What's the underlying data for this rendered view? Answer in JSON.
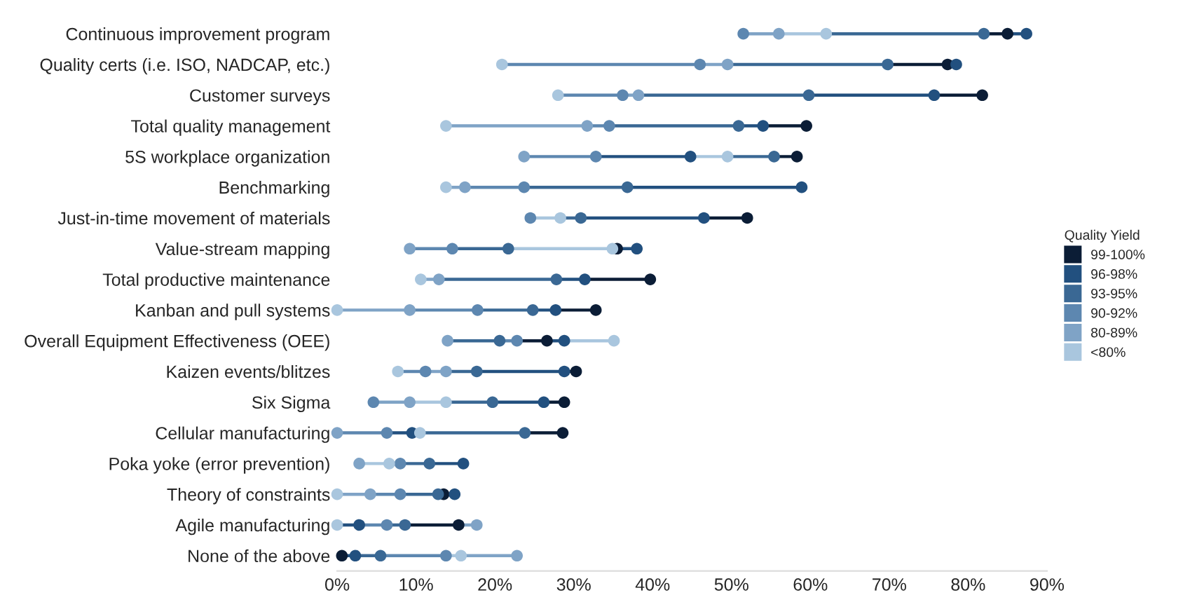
{
  "chart_data": {
    "type": "scatter",
    "orientation": "horizontal",
    "marker": "circle",
    "grid": false,
    "legend": "right",
    "legend_title": "Quality Yield",
    "categories": [
      "Continuous improvement program",
      "Quality certs (i.e. ISO, NADCAP, etc.)",
      "Customer surveys",
      "Total quality management",
      "5S workplace organization",
      "Benchmarking",
      "Just-in-time movement of materials",
      "Value-stream mapping",
      "Total productive maintenance",
      "Kanban and pull systems",
      "Overall Equipment Effectiveness (OEE)",
      "Kaizen events/blitzes",
      "Six Sigma",
      "Cellular manufacturing",
      "Poka yoke (error prevention)",
      "Theory of constraints",
      "Agile manufacturing",
      "None of the above"
    ],
    "xlim": [
      0,
      90
    ],
    "xticks": [
      {
        "value": 0,
        "label": "0%"
      },
      {
        "value": 10,
        "label": "10%"
      },
      {
        "value": 20,
        "label": "20%"
      },
      {
        "value": 30,
        "label": "30%"
      },
      {
        "value": 40,
        "label": "40%"
      },
      {
        "value": 50,
        "label": "50%"
      },
      {
        "value": 60,
        "label": "60%"
      },
      {
        "value": 70,
        "label": "70%"
      },
      {
        "value": 80,
        "label": "80%"
      },
      {
        "value": 90,
        "label": "90%"
      }
    ],
    "series": [
      {
        "name": "99-100%",
        "color": "#0b1d36",
        "values": [
          85,
          77.4,
          81.8,
          59.5,
          58.3,
          null,
          52,
          35.5,
          39.7,
          32.8,
          26.6,
          30.3,
          28.8,
          28.6,
          null,
          13.5,
          15.4,
          0.6
        ]
      },
      {
        "name": "96-98%",
        "color": "#22507f",
        "values": [
          87.4,
          78.5,
          75.7,
          54,
          44.8,
          58.9,
          46.5,
          38,
          31.4,
          27.7,
          28.8,
          28.8,
          26.2,
          9.5,
          16,
          14.9,
          2.8,
          2.3
        ]
      },
      {
        "name": "93-95%",
        "color": "#3a6894",
        "values": [
          82,
          69.8,
          59.8,
          50.9,
          55.4,
          36.8,
          30.9,
          21.7,
          27.8,
          24.8,
          20.6,
          17.7,
          19.7,
          23.8,
          11.7,
          12.8,
          8.6,
          5.5
        ]
      },
      {
        "name": "90-92%",
        "color": "#5d87b0",
        "values": [
          51.5,
          46,
          36.2,
          34.5,
          32.8,
          23.7,
          24.5,
          14.6,
          null,
          17.8,
          22.8,
          11.2,
          4.6,
          6.3,
          8,
          8,
          6.3,
          13.8
        ]
      },
      {
        "name": "80-89%",
        "color": "#7fa3c6",
        "values": [
          56,
          49.5,
          38.2,
          31.7,
          23.7,
          16.2,
          null,
          9.2,
          12.9,
          9.2,
          14,
          13.8,
          9.2,
          0,
          2.8,
          4.2,
          17.7,
          22.8
        ]
      },
      {
        "name": "<80%",
        "color": "#a9c6de",
        "values": [
          62,
          20.9,
          28,
          13.8,
          49.5,
          13.8,
          28.3,
          34.9,
          10.6,
          0,
          35.1,
          7.7,
          13.8,
          10.5,
          6.6,
          0,
          0,
          15.7
        ]
      }
    ]
  }
}
